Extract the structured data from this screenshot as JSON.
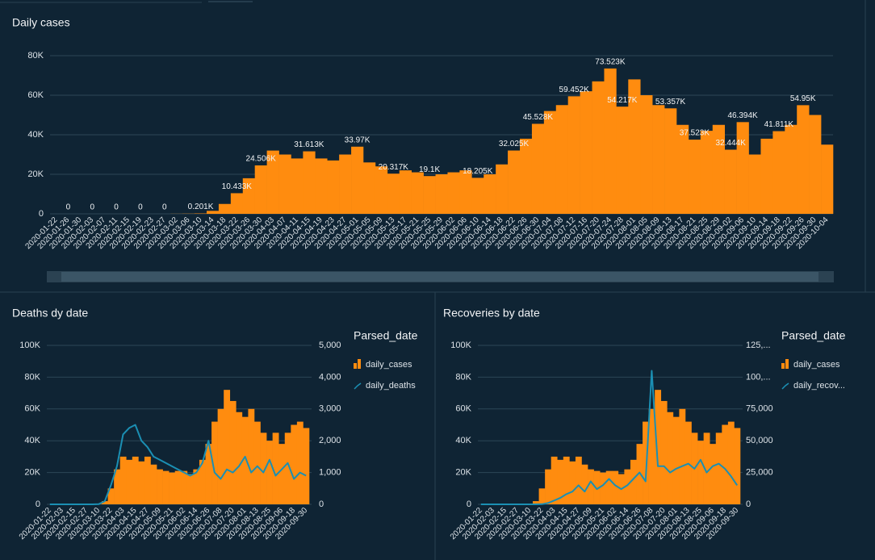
{
  "chart_data": [
    {
      "type": "bar",
      "title": "Daily cases",
      "categories": [
        "2020-01-22",
        "2020-01-26",
        "2020-01-30",
        "2020-02-03",
        "2020-02-07",
        "2020-02-11",
        "2020-02-15",
        "2020-02-19",
        "2020-02-23",
        "2020-02-27",
        "2020-03-02",
        "2020-03-06",
        "2020-03-10",
        "2020-03-14",
        "2020-03-18",
        "2020-03-22",
        "2020-03-26",
        "2020-03-30",
        "2020-04-03",
        "2020-04-07",
        "2020-04-11",
        "2020-04-15",
        "2020-04-19",
        "2020-04-23",
        "2020-04-27",
        "2020-05-01",
        "2020-05-05",
        "2020-05-09",
        "2020-05-13",
        "2020-05-17",
        "2020-05-21",
        "2020-05-25",
        "2020-05-29",
        "2020-06-02",
        "2020-06-06",
        "2020-06-10",
        "2020-06-14",
        "2020-06-18",
        "2020-06-22",
        "2020-06-26",
        "2020-06-30",
        "2020-07-04",
        "2020-07-08",
        "2020-07-12",
        "2020-07-16",
        "2020-07-20",
        "2020-07-24",
        "2020-07-28",
        "2020-08-01",
        "2020-08-05",
        "2020-08-09",
        "2020-08-13",
        "2020-08-17",
        "2020-08-21",
        "2020-08-25",
        "2020-08-29",
        "2020-09-02",
        "2020-09-06",
        "2020-09-10",
        "2020-09-14",
        "2020-09-18",
        "2020-09-22",
        "2020-09-26",
        "2020-09-30",
        "2020-10-04"
      ],
      "values": [
        0,
        0,
        0,
        0,
        0,
        0,
        0,
        0,
        0,
        0,
        50,
        100,
        201,
        1500,
        5000,
        10433,
        18000,
        24506,
        32000,
        30000,
        28000,
        31613,
        28000,
        27000,
        30000,
        33970,
        26000,
        24000,
        20317,
        22000,
        21000,
        19100,
        20000,
        21000,
        22000,
        18205,
        20000,
        25000,
        32025,
        38000,
        45528,
        52000,
        55000,
        59452,
        62000,
        67000,
        73523,
        54217,
        68000,
        60000,
        55000,
        53357,
        45000,
        37523,
        42000,
        45000,
        32444,
        46394,
        30000,
        38000,
        41811,
        45000,
        54950,
        50000,
        35000
      ],
      "value_labels": [
        null,
        "0",
        null,
        "0",
        null,
        "0",
        null,
        "0",
        null,
        "0",
        null,
        null,
        "0.201K",
        null,
        null,
        "10.433K",
        null,
        "24.506K",
        null,
        null,
        null,
        "31.613K",
        null,
        null,
        null,
        "33.97K",
        null,
        null,
        "20.317K",
        null,
        null,
        "19.1K",
        null,
        null,
        null,
        "18.205K",
        null,
        null,
        "32.025K",
        null,
        "45.528K",
        null,
        null,
        "59.452K",
        null,
        null,
        "73.523K",
        "54.217K",
        null,
        null,
        null,
        "53.357K",
        null,
        "37.523K",
        null,
        null,
        "32.444K",
        "46.394K",
        null,
        null,
        "41.811K",
        null,
        "54.95K",
        null,
        null
      ],
      "color": "#ff8c0f",
      "ylim": [
        0,
        80000
      ],
      "yticks": [
        0,
        {
          "value": 20000,
          "label": "20K"
        },
        {
          "value": 40000,
          "label": "40K"
        },
        {
          "value": 60000,
          "label": "60K"
        },
        {
          "value": 80000,
          "label": "80K"
        }
      ],
      "grid": true
    },
    {
      "type": "combo",
      "title": "Deaths dy date",
      "legend_title": "Parsed_date",
      "categories": [
        "2020-01-22",
        null,
        "2020-02-03",
        null,
        "2020-02-15",
        null,
        "2020-02-27",
        null,
        "2020-03-10",
        null,
        "2020-03-22",
        null,
        "2020-04-03",
        null,
        "2020-04-15",
        null,
        "2020-04-27",
        null,
        "2020-05-09",
        null,
        "2020-05-21",
        null,
        "2020-06-02",
        null,
        "2020-06-14",
        null,
        "2020-06-26",
        null,
        "2020-07-08",
        null,
        "2020-07-20",
        null,
        "2020-08-01",
        null,
        "2020-08-13",
        null,
        "2020-08-25",
        null,
        "2020-09-06",
        null,
        "2020-09-18",
        null,
        "2020-09-30"
      ],
      "series": [
        {
          "name": "daily_cases",
          "color": "#ff8c0f",
          "values": [
            0,
            0,
            0,
            0,
            0,
            0,
            0,
            0,
            200,
            2000,
            10000,
            22000,
            30000,
            28000,
            30000,
            27000,
            30000,
            25000,
            22000,
            21000,
            20000,
            21000,
            21000,
            19000,
            22000,
            28000,
            38000,
            52000,
            60000,
            72000,
            65000,
            58000,
            55000,
            60000,
            52000,
            45000,
            40000,
            45000,
            38000,
            45000,
            50000,
            52000,
            48000
          ]
        },
        {
          "name": "daily_deaths",
          "color": "#1b8fb3",
          "axis": "y2",
          "values": [
            0,
            0,
            0,
            0,
            0,
            0,
            0,
            0,
            5,
            100,
            600,
            1200,
            2200,
            2400,
            2500,
            2000,
            1800,
            1500,
            1400,
            1300,
            1200,
            1100,
            1000,
            900,
            1000,
            1300,
            2000,
            1000,
            800,
            1100,
            1000,
            1200,
            1500,
            1000,
            1200,
            1000,
            1400,
            900,
            1100,
            1300,
            800,
            1000,
            900
          ]
        }
      ],
      "ylim": [
        0,
        100000
      ],
      "yticks": [
        0,
        {
          "value": 20000,
          "label": "20K"
        },
        {
          "value": 40000,
          "label": "40K"
        },
        {
          "value": 60000,
          "label": "60K"
        },
        {
          "value": 80000,
          "label": "80K"
        },
        {
          "value": 100000,
          "label": "100K"
        }
      ],
      "y2lim": [
        0,
        5000
      ],
      "y2ticks": [
        0,
        {
          "value": 1000,
          "label": "1,000"
        },
        {
          "value": 2000,
          "label": "2,000"
        },
        {
          "value": 3000,
          "label": "3,000"
        },
        {
          "value": 4000,
          "label": "4,000"
        },
        {
          "value": 5000,
          "label": "5,000"
        }
      ],
      "grid": true
    },
    {
      "type": "combo",
      "title": "Recoveries by date",
      "legend_title": "Parsed_date",
      "categories": [
        "2020-01-22",
        null,
        "2020-02-03",
        null,
        "2020-02-15",
        null,
        "2020-02-27",
        null,
        "2020-03-10",
        null,
        "2020-03-22",
        null,
        "2020-04-03",
        null,
        "2020-04-15",
        null,
        "2020-04-27",
        null,
        "2020-05-09",
        null,
        "2020-05-21",
        null,
        "2020-06-02",
        null,
        "2020-06-14",
        null,
        "2020-06-26",
        null,
        "2020-07-08",
        null,
        "2020-07-20",
        null,
        "2020-08-01",
        null,
        "2020-08-13",
        null,
        "2020-08-25",
        null,
        "2020-09-06",
        null,
        "2020-09-18",
        null,
        "2020-09-30"
      ],
      "series": [
        {
          "name": "daily_cases",
          "color": "#ff8c0f",
          "values": [
            0,
            0,
            0,
            0,
            0,
            0,
            0,
            0,
            200,
            2000,
            10000,
            22000,
            30000,
            28000,
            30000,
            27000,
            30000,
            25000,
            22000,
            21000,
            20000,
            21000,
            21000,
            19000,
            22000,
            28000,
            38000,
            52000,
            60000,
            72000,
            65000,
            58000,
            55000,
            60000,
            52000,
            45000,
            40000,
            45000,
            38000,
            45000,
            50000,
            52000,
            48000
          ]
        },
        {
          "name": "daily_recov...",
          "color": "#1b8fb3",
          "axis": "y2",
          "values": [
            0,
            0,
            0,
            0,
            0,
            0,
            0,
            0,
            0,
            0,
            100,
            1000,
            3000,
            5000,
            8000,
            10000,
            15000,
            10000,
            18000,
            12000,
            15000,
            20000,
            15000,
            12000,
            15000,
            20000,
            25000,
            18000,
            105000,
            30000,
            30000,
            25000,
            28000,
            30000,
            32000,
            28000,
            35000,
            25000,
            30000,
            32000,
            28000,
            22000,
            15000
          ]
        }
      ],
      "ylim": [
        0,
        100000
      ],
      "yticks": [
        0,
        {
          "value": 20000,
          "label": "20K"
        },
        {
          "value": 40000,
          "label": "40K"
        },
        {
          "value": 60000,
          "label": "60K"
        },
        {
          "value": 80000,
          "label": "80K"
        },
        {
          "value": 100000,
          "label": "100K"
        }
      ],
      "y2lim": [
        0,
        125000
      ],
      "y2ticks": [
        0,
        {
          "value": 25000,
          "label": "25,000"
        },
        {
          "value": 50000,
          "label": "50,000"
        },
        {
          "value": 75000,
          "label": "75,000"
        },
        {
          "value": 100000,
          "label": "100,..."
        },
        {
          "value": 125000,
          "label": "125,..."
        }
      ],
      "grid": true
    }
  ]
}
